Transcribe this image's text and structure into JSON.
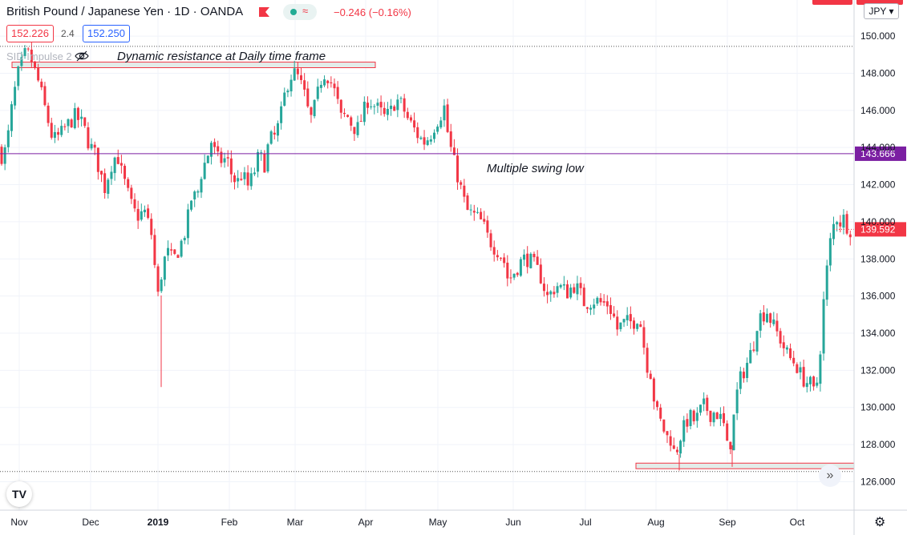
{
  "header": {
    "title": "British Pound / Japanese Yen · 1D · OANDA",
    "change": "−0.246 (−0.16%)",
    "bid": "152.226",
    "spread": "2.4",
    "ask": "152.250",
    "indicator": "SID Impulse 2",
    "currency": "JPY"
  },
  "annotations": {
    "resistance_label": "Dynamic resistance at Daily time frame",
    "swing_low_label": "Multiple swing low"
  },
  "colors": {
    "up": "#26a69a",
    "down": "#f23645",
    "level_line": "#7b1fa2",
    "zone_border": "#f23645",
    "zone_fill": "#e3ece9"
  },
  "icons": {
    "logo": "tradingview-logo-icon",
    "eye": "eye-off-icon",
    "scroll": "double-chevron-right-icon",
    "settings": "gear-icon"
  },
  "chart_data": {
    "type": "candlestick",
    "ylim": [
      125.2,
      151.6
    ],
    "y_ticks": [
      126,
      128,
      130,
      132,
      134,
      136,
      138,
      140,
      142,
      144,
      146,
      148,
      150
    ],
    "y_tick_labels": [
      "126.000",
      "128.000",
      "130.000",
      "132.000",
      "134.000",
      "136.000",
      "138.000",
      "140.000",
      "142.000",
      "144.000",
      "146.000",
      "148.000",
      "150.000"
    ],
    "x_labels": [
      "Nov",
      "Dec",
      "2019",
      "Feb",
      "Mar",
      "Apr",
      "May",
      "Jun",
      "Jul",
      "Aug",
      "Sep",
      "Oct"
    ],
    "horizontal_level": {
      "value": 143.666,
      "label": "143.666"
    },
    "last_price": {
      "value": 139.592,
      "label": "139.592"
    },
    "top_dotted_level": 149.45,
    "bottom_dotted_level": 126.55,
    "resistance_zone": {
      "top": 148.6,
      "bottom": 148.3
    },
    "support_zone": {
      "top": 127.0,
      "bottom": 126.7
    },
    "path": [
      [
        0,
        144.3
      ],
      [
        5,
        143.5
      ],
      [
        12,
        143.9
      ],
      [
        20,
        146.5
      ],
      [
        27,
        148.0
      ],
      [
        37,
        149.2
      ],
      [
        44,
        148.6
      ],
      [
        53,
        147.4
      ],
      [
        62,
        145.8
      ],
      [
        70,
        144.4
      ],
      [
        78,
        144.6
      ],
      [
        88,
        145.2
      ],
      [
        98,
        145.7
      ],
      [
        108,
        145.2
      ],
      [
        115,
        144.2
      ],
      [
        122,
        143.7
      ],
      [
        128,
        142.8
      ],
      [
        135,
        141.8
      ],
      [
        142,
        143.0
      ],
      [
        150,
        143.7
      ],
      [
        156,
        142.6
      ],
      [
        163,
        141.6
      ],
      [
        170,
        140.6
      ],
      [
        177,
        140.3
      ],
      [
        184,
        140.6
      ],
      [
        190,
        139.8
      ],
      [
        195,
        139.0
      ],
      [
        199,
        136.3
      ],
      [
        202,
        135.9
      ],
      [
        206,
        137.4
      ],
      [
        212,
        138.4
      ],
      [
        220,
        137.9
      ],
      [
        228,
        138.6
      ],
      [
        236,
        139.6
      ],
      [
        243,
        141.3
      ],
      [
        250,
        141.4
      ],
      [
        256,
        142.8
      ],
      [
        262,
        143.4
      ],
      [
        268,
        144.4
      ],
      [
        274,
        143.4
      ],
      [
        280,
        143.3
      ],
      [
        287,
        143.4
      ],
      [
        294,
        142.4
      ],
      [
        300,
        142.1
      ],
      [
        306,
        142.6
      ],
      [
        313,
        141.9
      ],
      [
        320,
        142.5
      ],
      [
        327,
        143.6
      ],
      [
        334,
        143.1
      ],
      [
        340,
        144.4
      ],
      [
        347,
        144.6
      ],
      [
        353,
        145.4
      ],
      [
        359,
        146.8
      ],
      [
        365,
        147.8
      ],
      [
        371,
        148.0
      ],
      [
        377,
        147.7
      ],
      [
        384,
        146.8
      ],
      [
        391,
        145.4
      ],
      [
        398,
        146.4
      ],
      [
        404,
        147.6
      ],
      [
        410,
        148.1
      ],
      [
        416,
        147.6
      ],
      [
        423,
        146.8
      ],
      [
        430,
        145.5
      ],
      [
        436,
        145.8
      ],
      [
        442,
        145.3
      ],
      [
        449,
        144.9
      ],
      [
        456,
        145.7
      ],
      [
        463,
        146.6
      ],
      [
        470,
        146.3
      ],
      [
        477,
        146.0
      ],
      [
        484,
        145.6
      ],
      [
        491,
        145.9
      ],
      [
        498,
        146.6
      ],
      [
        505,
        146.3
      ],
      [
        512,
        145.6
      ],
      [
        519,
        145.1
      ],
      [
        526,
        144.6
      ],
      [
        533,
        144.3
      ],
      [
        540,
        144.6
      ],
      [
        547,
        145.3
      ],
      [
        553,
        145.7
      ],
      [
        558,
        146.2
      ],
      [
        563,
        144.6
      ],
      [
        568,
        143.6
      ],
      [
        574,
        142.6
      ],
      [
        580,
        141.6
      ],
      [
        586,
        140.6
      ],
      [
        593,
        140.4
      ],
      [
        600,
        140.2
      ],
      [
        606,
        139.9
      ],
      [
        612,
        139.2
      ],
      [
        619,
        138.7
      ],
      [
        626,
        138.4
      ],
      [
        632,
        138.0
      ],
      [
        638,
        136.8
      ],
      [
        644,
        137.2
      ],
      [
        650,
        137.6
      ],
      [
        656,
        138.0
      ],
      [
        662,
        138.0
      ],
      [
        668,
        137.8
      ],
      [
        674,
        137.4
      ],
      [
        680,
        136.9
      ],
      [
        686,
        135.9
      ],
      [
        692,
        136.2
      ],
      [
        698,
        136.6
      ],
      [
        705,
        136.4
      ],
      [
        712,
        136.2
      ],
      [
        719,
        136.6
      ],
      [
        726,
        136.3
      ],
      [
        733,
        135.6
      ],
      [
        740,
        135.7
      ],
      [
        747,
        135.8
      ],
      [
        754,
        135.6
      ],
      [
        761,
        135.6
      ],
      [
        768,
        135.1
      ],
      [
        774,
        134.2
      ],
      [
        780,
        134.5
      ],
      [
        787,
        134.6
      ],
      [
        794,
        134.6
      ],
      [
        801,
        135.0
      ],
      [
        806,
        133.6
      ],
      [
        811,
        132.3
      ],
      [
        816,
        131.8
      ],
      [
        821,
        130.0
      ],
      [
        826,
        129.4
      ],
      [
        831,
        128.9
      ],
      [
        836,
        128.4
      ],
      [
        841,
        128.3
      ],
      [
        846,
        127.3
      ],
      [
        851,
        128.3
      ],
      [
        856,
        128.8
      ],
      [
        861,
        129.3
      ],
      [
        866,
        129.5
      ],
      [
        871,
        129.2
      ],
      [
        876,
        129.7
      ],
      [
        881,
        130.1
      ],
      [
        886,
        129.9
      ],
      [
        891,
        129.6
      ],
      [
        896,
        129.8
      ],
      [
        901,
        129.5
      ],
      [
        906,
        129.2
      ],
      [
        911,
        127.8
      ],
      [
        916,
        128.2
      ],
      [
        920,
        129.8
      ],
      [
        925,
        131.3
      ],
      [
        930,
        131.8
      ],
      [
        935,
        132.3
      ],
      [
        940,
        132.9
      ],
      [
        945,
        133.6
      ],
      [
        949,
        134.8
      ],
      [
        955,
        135.0
      ],
      [
        961,
        135.2
      ],
      [
        966,
        134.6
      ],
      [
        972,
        134.1
      ],
      [
        978,
        133.6
      ],
      [
        984,
        133.0
      ],
      [
        990,
        132.6
      ],
      [
        996,
        132.4
      ],
      [
        1002,
        131.8
      ],
      [
        1008,
        131.4
      ],
      [
        1014,
        131.3
      ],
      [
        1019,
        130.8
      ],
      [
        1023,
        131.4
      ],
      [
        1027,
        133.2
      ],
      [
        1031,
        135.6
      ],
      [
        1035,
        137.3
      ],
      [
        1039,
        138.8
      ],
      [
        1043,
        139.7
      ],
      [
        1047,
        140.3
      ],
      [
        1052,
        140.0
      ],
      [
        1057,
        140.2
      ],
      [
        1062,
        139.6
      ]
    ],
    "spikes": [
      {
        "x": 201,
        "low": 131.1
      },
      {
        "x": 847,
        "low": 126.6
      },
      {
        "x": 913,
        "low": 126.8
      }
    ]
  }
}
